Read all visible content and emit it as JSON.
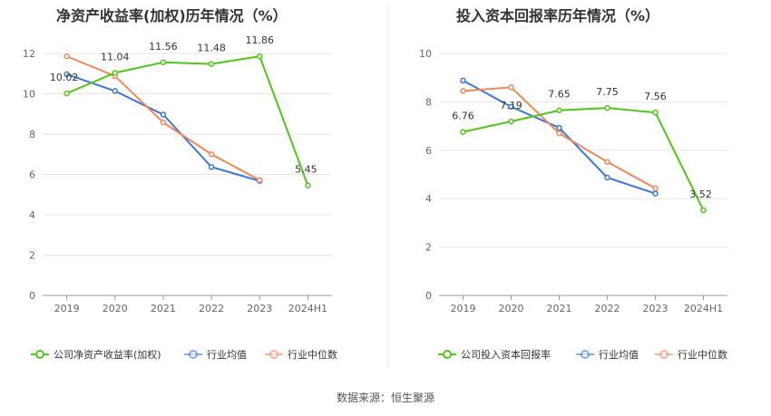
{
  "chart_data": [
    {
      "type": "line",
      "title": "净资产收益率(加权)历年情况（%）",
      "categories": [
        "2019",
        "2020",
        "2021",
        "2022",
        "2023",
        "2024H1"
      ],
      "ylim": [
        0,
        12
      ],
      "yticks": [
        0,
        2,
        4,
        6,
        8,
        10,
        12
      ],
      "grid": true,
      "legend_position": "bottom",
      "series": [
        {
          "name": "公司净资产收益率(加权)",
          "color": "#52c41a",
          "values": [
            10.02,
            11.04,
            11.56,
            11.48,
            11.86,
            5.45
          ],
          "labels": [
            "10.02",
            "11.04",
            "11.56",
            "11.48",
            "11.86",
            "5.45"
          ]
        },
        {
          "name": "行业均值",
          "color": "#3a78d4",
          "values": [
            10.97,
            10.14,
            8.97,
            6.37,
            5.68,
            null
          ]
        },
        {
          "name": "行业中位数",
          "color": "#f08759",
          "values": [
            11.86,
            10.88,
            8.58,
            7.0,
            5.72,
            null
          ]
        }
      ]
    },
    {
      "type": "line",
      "title": "投入资本回报率历年情况（%）",
      "categories": [
        "2019",
        "2020",
        "2021",
        "2022",
        "2023",
        "2024H1"
      ],
      "ylim": [
        0,
        10
      ],
      "yticks": [
        0,
        2,
        4,
        6,
        8,
        10
      ],
      "grid": true,
      "legend_position": "bottom",
      "series": [
        {
          "name": "公司投入资本回报率",
          "color": "#52c41a",
          "values": [
            6.76,
            7.19,
            7.65,
            7.75,
            7.56,
            3.52
          ],
          "labels": [
            "6.76",
            "7.19",
            "7.65",
            "7.75",
            "7.56",
            "3.52"
          ]
        },
        {
          "name": "行业均值",
          "color": "#3a78d4",
          "values": [
            8.88,
            7.8,
            6.93,
            4.87,
            4.21,
            null
          ]
        },
        {
          "name": "行业中位数",
          "color": "#f08759",
          "values": [
            8.45,
            8.6,
            6.7,
            5.52,
            4.43,
            null
          ]
        }
      ]
    }
  ],
  "source": "数据来源：恒生聚源"
}
